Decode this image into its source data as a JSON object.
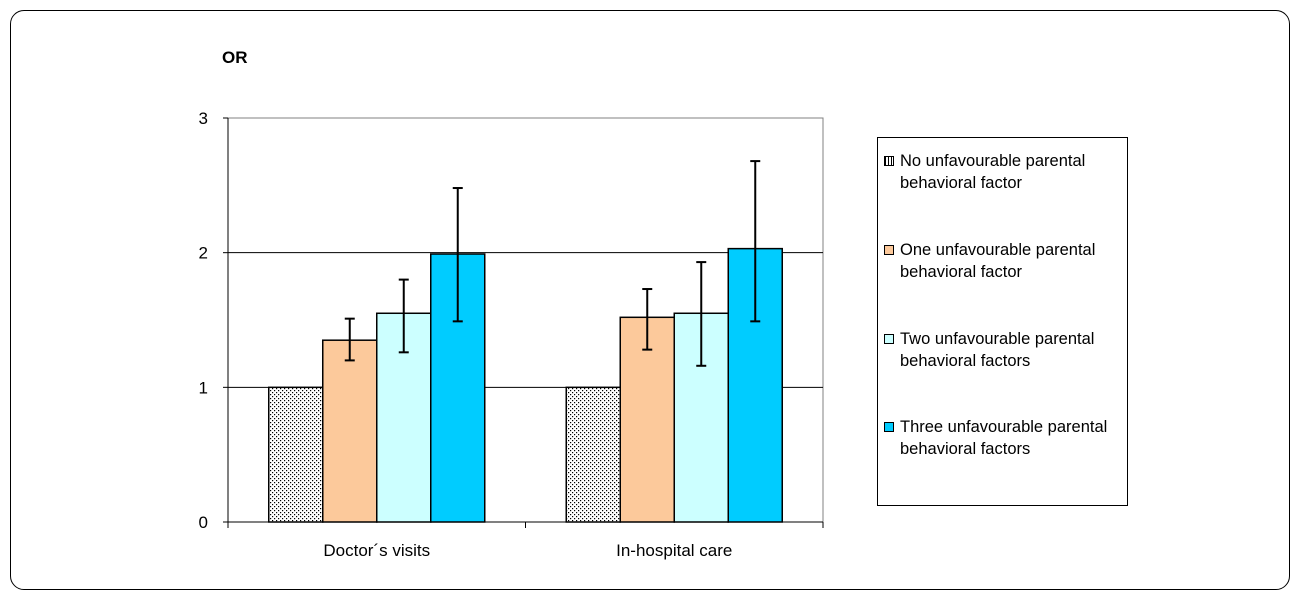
{
  "chart_data": {
    "type": "bar",
    "ylabel": "OR",
    "categories": [
      "Doctor´s visits",
      "In-hospital care"
    ],
    "ylim": [
      0,
      3
    ],
    "yticks": [
      0,
      1,
      2,
      3
    ],
    "grid": true,
    "legend_position": "right",
    "series": [
      {
        "name": "No unfavourable parental behavioral factor",
        "values": [
          1.0,
          1.0
        ],
        "lower": [
          null,
          null
        ],
        "upper": [
          null,
          null
        ],
        "color": "#ffffff",
        "pattern": "dotted"
      },
      {
        "name": "One unfavourable parental behavioral factor",
        "values": [
          1.35,
          1.52
        ],
        "lower": [
          1.2,
          1.28
        ],
        "upper": [
          1.51,
          1.73
        ],
        "color": "#fcc99b"
      },
      {
        "name": "Two unfavourable parental behavioral factors",
        "values": [
          1.55,
          1.55
        ],
        "lower": [
          1.26,
          1.16
        ],
        "upper": [
          1.8,
          1.93
        ],
        "color": "#ccffff"
      },
      {
        "name": "Three unfavourable parental behavioral factors",
        "values": [
          1.99,
          2.03
        ],
        "lower": [
          1.49,
          1.49
        ],
        "upper": [
          2.48,
          2.68
        ],
        "color": "#00ccff"
      }
    ]
  }
}
